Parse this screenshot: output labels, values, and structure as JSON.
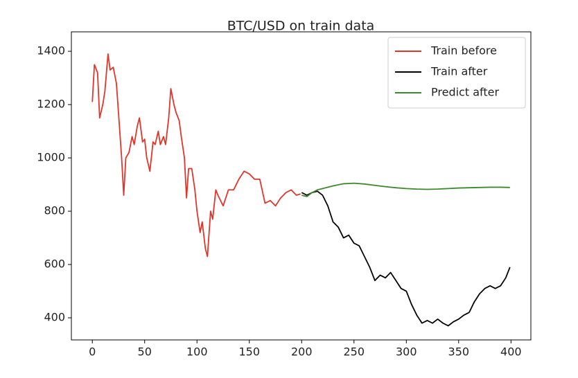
{
  "chart_data": {
    "type": "line",
    "title": "BTC/USD on train data",
    "xlim": [
      -20,
      419
    ],
    "ylim": [
      317,
      1473
    ],
    "xticks": [
      0,
      50,
      100,
      150,
      200,
      250,
      300,
      350,
      400
    ],
    "yticks": [
      400,
      600,
      800,
      1000,
      1200,
      1400
    ],
    "legend": "upper-right",
    "series": [
      {
        "name": "Train before",
        "color": "#e3342a",
        "x": [
          0,
          2,
          5,
          7,
          10,
          12,
          15,
          17,
          20,
          23,
          25,
          28,
          30,
          32,
          35,
          38,
          40,
          43,
          45,
          48,
          50,
          52,
          55,
          58,
          60,
          63,
          65,
          68,
          70,
          73,
          75,
          78,
          80,
          83,
          85,
          88,
          90,
          92,
          95,
          98,
          100,
          103,
          105,
          108,
          110,
          113,
          115,
          118,
          120,
          125,
          130,
          135,
          140,
          145,
          150,
          155,
          160,
          165,
          170,
          175,
          180,
          185,
          190,
          195,
          199
        ],
        "values": [
          1210,
          1350,
          1320,
          1150,
          1200,
          1250,
          1390,
          1330,
          1340,
          1280,
          1170,
          1000,
          860,
          1000,
          1020,
          1080,
          1050,
          1120,
          1150,
          1060,
          1070,
          1000,
          950,
          1060,
          1050,
          1100,
          1050,
          1080,
          1050,
          1150,
          1260,
          1200,
          1170,
          1140,
          1080,
          1000,
          850,
          960,
          960,
          880,
          800,
          720,
          760,
          660,
          630,
          800,
          770,
          880,
          860,
          820,
          880,
          880,
          920,
          950,
          940,
          920,
          920,
          830,
          840,
          820,
          850,
          870,
          880,
          860,
          865
        ]
      },
      {
        "name": "Train after",
        "color": "#000000",
        "x": [
          200,
          205,
          210,
          215,
          220,
          225,
          230,
          235,
          240,
          245,
          250,
          255,
          260,
          265,
          270,
          275,
          280,
          285,
          290,
          295,
          300,
          305,
          310,
          315,
          320,
          325,
          330,
          335,
          340,
          345,
          350,
          355,
          360,
          365,
          370,
          375,
          380,
          385,
          390,
          395,
          399
        ],
        "values": [
          870,
          860,
          870,
          875,
          860,
          820,
          760,
          740,
          700,
          710,
          680,
          670,
          630,
          590,
          540,
          560,
          550,
          570,
          540,
          510,
          500,
          450,
          410,
          380,
          390,
          380,
          395,
          380,
          370,
          385,
          395,
          410,
          420,
          460,
          490,
          510,
          520,
          510,
          520,
          550,
          590
        ]
      },
      {
        "name": "Predict after",
        "color": "#3a8a2c",
        "x": [
          200,
          205,
          210,
          215,
          220,
          230,
          240,
          250,
          260,
          270,
          280,
          290,
          300,
          310,
          320,
          330,
          340,
          350,
          360,
          370,
          380,
          390,
          399
        ],
        "values": [
          860,
          855,
          870,
          880,
          885,
          895,
          903,
          905,
          902,
          897,
          892,
          888,
          885,
          883,
          882,
          883,
          885,
          887,
          888,
          889,
          890,
          890,
          889
        ]
      }
    ]
  }
}
